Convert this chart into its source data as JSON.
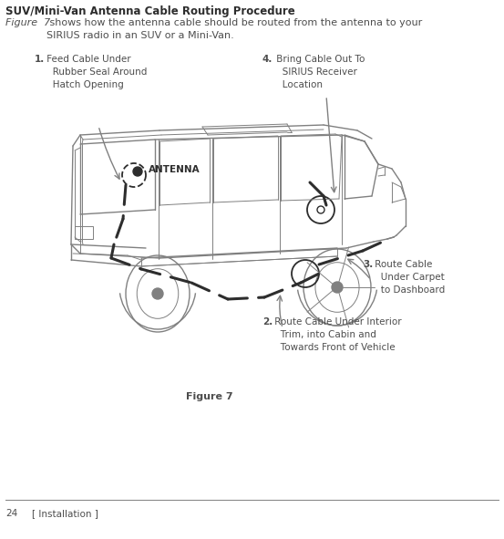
{
  "bg_color": "#ffffff",
  "text_color": "#4d4d4d",
  "title": "SUV/Mini-Van Antenna Cable Routing Procedure",
  "body_italic": "Figure  7",
  "body_rest": " shows how the antenna cable should be routed from the antenna to your\nSIRIUS radio in an SUV or a Mini-Van.",
  "label1_num": "1.",
  "label1_text": " Feed Cable Under\n   Rubber Seal Around\n   Hatch Opening",
  "label2_num": "2.",
  "label2_text": " Route Cable Under Interior\n   Trim, into Cabin and\n   Towards Front of Vehicle",
  "label3_num": "3.",
  "label3_text": " Route Cable\n   Under Carpet\n   to Dashboard",
  "label4_num": "4.",
  "label4_text": " Bring Cable Out To\n   SIRIUS Receiver\n   Location",
  "antenna_label": "ANTENNA",
  "figure_caption": "Figure 7",
  "footer_page": "24",
  "footer_section": "[ Installation ]",
  "title_fontsize": 8.5,
  "body_fontsize": 8.0,
  "label_fontsize": 7.5,
  "caption_fontsize": 8.0,
  "footer_fontsize": 7.5,
  "line_color": "#808080",
  "dark_color": "#2d2d2d"
}
